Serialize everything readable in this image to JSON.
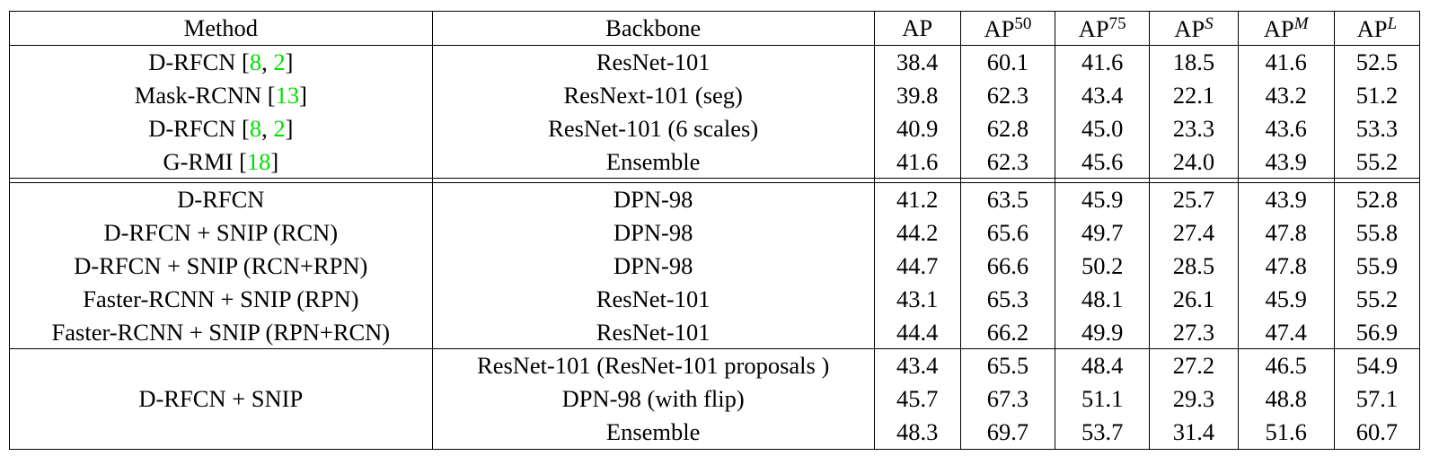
{
  "header": {
    "method": "Method",
    "backbone": "Backbone",
    "ap": "AP",
    "ap50_base": "AP",
    "ap50_sup": "50",
    "ap75_base": "AP",
    "ap75_sup": "75",
    "aps_base": "AP",
    "aps_sup": "S",
    "apm_base": "AP",
    "apm_sup": "M",
    "apl_base": "AP",
    "apl_sup": "L"
  },
  "group1": [
    {
      "method": "D-RFCN",
      "cites": [
        "8",
        "2"
      ],
      "backbone": "ResNet-101",
      "ap": "38.4",
      "ap50": "60.1",
      "ap75": "41.6",
      "aps": "18.5",
      "apm": "41.6",
      "apl": "52.5"
    },
    {
      "method": "Mask-RCNN",
      "cites": [
        "13"
      ],
      "backbone": "ResNext-101 (seg)",
      "ap": "39.8",
      "ap50": "62.3",
      "ap75": "43.4",
      "aps": "22.1",
      "apm": "43.2",
      "apl": "51.2"
    },
    {
      "method": "D-RFCN",
      "cites": [
        "8",
        "2"
      ],
      "backbone": "ResNet-101 (6 scales)",
      "ap": "40.9",
      "ap50": "62.8",
      "ap75": "45.0",
      "aps": "23.3",
      "apm": "43.6",
      "apl": "53.3"
    },
    {
      "method": "G-RMI",
      "cites": [
        "18"
      ],
      "backbone": "Ensemble",
      "ap": "41.6",
      "ap50": "62.3",
      "ap75": "45.6",
      "aps": "24.0",
      "apm": "43.9",
      "apl": "55.2"
    }
  ],
  "group2": [
    {
      "method": "D-RFCN",
      "backbone": "DPN-98",
      "ap": "41.2",
      "ap50": "63.5",
      "ap75": "45.9",
      "aps": "25.7",
      "apm": "43.9",
      "apl": "52.8"
    },
    {
      "method": "D-RFCN + SNIP (RCN)",
      "backbone": "DPN-98",
      "ap": "44.2",
      "ap50": "65.6",
      "ap75": "49.7",
      "aps": "27.4",
      "apm": "47.8",
      "apl": "55.8"
    },
    {
      "method": "D-RFCN + SNIP (RCN+RPN)",
      "backbone": "DPN-98",
      "ap": "44.7",
      "ap50": "66.6",
      "ap75": "50.2",
      "aps": "28.5",
      "apm": "47.8",
      "apl": "55.9"
    },
    {
      "method": "Faster-RCNN + SNIP (RPN)",
      "backbone": "ResNet-101",
      "ap": "43.1",
      "ap50": "65.3",
      "ap75": "48.1",
      "aps": "26.1",
      "apm": "45.9",
      "apl": "55.2"
    },
    {
      "method": "Faster-RCNN + SNIP (RPN+RCN)",
      "backbone": "ResNet-101",
      "ap": "44.4",
      "ap50": "66.2",
      "ap75": "49.9",
      "aps": "27.3",
      "apm": "47.4",
      "apl": "56.9"
    }
  ],
  "group3": {
    "method": "D-RFCN + SNIP",
    "rows": [
      {
        "backbone": "ResNet-101 (ResNet-101 proposals )",
        "ap": "43.4",
        "ap50": "65.5",
        "ap75": "48.4",
        "aps": "27.2",
        "apm": "46.5",
        "apl": "54.9"
      },
      {
        "backbone": "DPN-98 (with flip)",
        "ap": "45.7",
        "ap50": "67.3",
        "ap75": "51.1",
        "aps": "29.3",
        "apm": "48.8",
        "apl": "57.1"
      },
      {
        "backbone": "Ensemble",
        "ap": "48.3",
        "ap50": "69.7",
        "ap75": "53.7",
        "aps": "31.4",
        "apm": "51.6",
        "apl": "60.7"
      }
    ]
  },
  "colors": {
    "citation": "#00e000",
    "text": "#000000",
    "border": "#000000"
  }
}
